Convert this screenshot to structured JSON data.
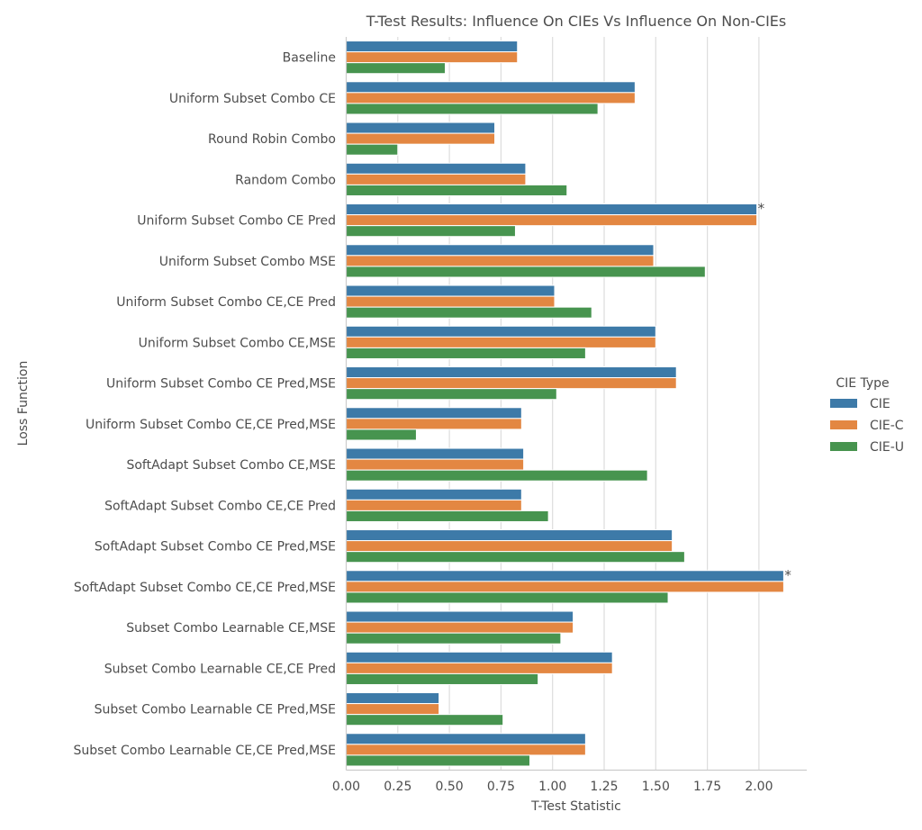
{
  "chart_data": {
    "type": "bar",
    "orientation": "horizontal",
    "title": "T-Test Results: Influence On CIEs Vs Influence On Non-CIEs",
    "xlabel": "T-Test Statistic",
    "ylabel": "Loss Function",
    "xlim": [
      0,
      2.22
    ],
    "xticks": [
      "0.00",
      "0.25",
      "0.50",
      "0.75",
      "1.00",
      "1.25",
      "1.50",
      "1.75",
      "2.00"
    ],
    "xtick_values": [
      0,
      0.25,
      0.5,
      0.75,
      1.0,
      1.25,
      1.5,
      1.75,
      2.0
    ],
    "grid": "vertical",
    "legend": {
      "title": "CIE Type",
      "placement": "right"
    },
    "categories": [
      "Baseline",
      "Uniform Subset Combo CE",
      "Round Robin Combo",
      "Random Combo",
      "Uniform Subset Combo CE Pred",
      "Uniform Subset Combo MSE",
      "Uniform Subset Combo CE,CE Pred",
      "Uniform Subset Combo CE,MSE",
      "Uniform Subset Combo CE Pred,MSE",
      "Uniform Subset Combo CE,CE Pred,MSE",
      "SoftAdapt Subset Combo CE,MSE",
      "SoftAdapt Subset Combo CE,CE Pred",
      "SoftAdapt Subset Combo CE Pred,MSE",
      "SoftAdapt Subset Combo CE,CE Pred,MSE",
      "Subset Combo Learnable CE,MSE",
      "Subset Combo Learnable CE,CE Pred",
      "Subset Combo Learnable CE Pred,MSE",
      "Subset Combo Learnable CE,CE Pred,MSE"
    ],
    "series": [
      {
        "name": "CIE",
        "color": "#3d7aa8",
        "values": [
          0.83,
          1.4,
          0.72,
          0.87,
          1.99,
          1.49,
          1.01,
          1.5,
          1.6,
          0.85,
          0.86,
          0.85,
          1.58,
          2.12,
          1.1,
          1.29,
          0.45,
          1.16
        ]
      },
      {
        "name": "CIE-C",
        "color": "#e38742",
        "values": [
          0.83,
          1.4,
          0.72,
          0.87,
          1.99,
          1.49,
          1.01,
          1.5,
          1.6,
          0.85,
          0.86,
          0.85,
          1.58,
          2.12,
          1.1,
          1.29,
          0.45,
          1.16
        ]
      },
      {
        "name": "CIE-U",
        "color": "#47944f",
        "values": [
          0.48,
          1.22,
          0.25,
          1.07,
          0.82,
          1.74,
          1.19,
          1.16,
          1.02,
          0.34,
          1.46,
          0.98,
          1.64,
          1.56,
          1.04,
          0.93,
          0.76,
          0.89
        ]
      }
    ],
    "annotations": [
      {
        "text": "*",
        "category": "Uniform Subset Combo CE Pred",
        "series": "CIE"
      },
      {
        "text": "*",
        "category": "SoftAdapt Subset Combo CE,CE Pred,MSE",
        "series": "CIE"
      }
    ]
  }
}
